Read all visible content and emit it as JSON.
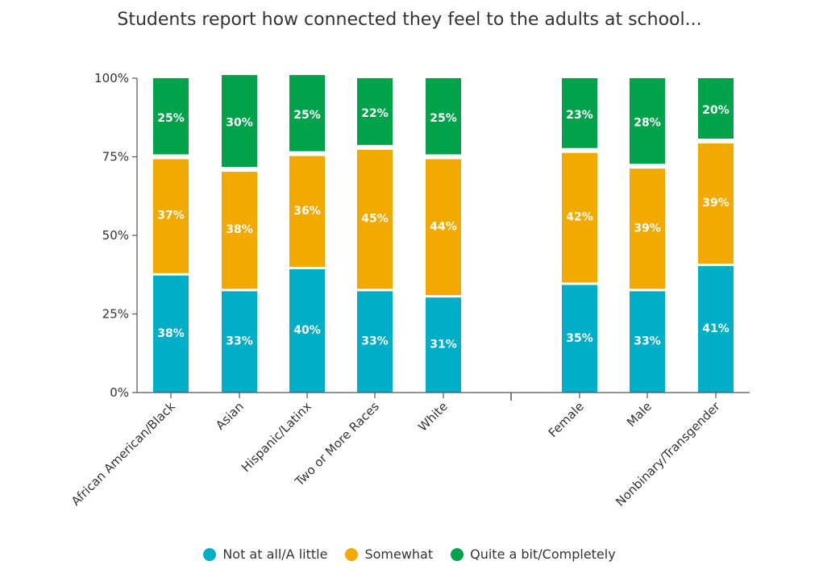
{
  "chart_data": {
    "type": "bar",
    "stacked": true,
    "percent": true,
    "title": "Students report how connected they feel to the adults at school...",
    "xlabel": "",
    "ylabel": "",
    "ylim": [
      0,
      100
    ],
    "yticks": [
      "0%",
      "25%",
      "50%",
      "75%",
      "100%"
    ],
    "categories": [
      "African American/Black",
      "Asian",
      "Hispanic/Latinx",
      "Two or More Races",
      "White",
      "Female",
      "Male",
      "Nonbinary/Transgender"
    ],
    "groups": [
      [
        "African American/Black",
        "Asian",
        "Hispanic/Latinx",
        "Two or More Races",
        "White"
      ],
      [
        "Female",
        "Male",
        "Nonbinary/Transgender"
      ]
    ],
    "series": [
      {
        "name": "Not at all/A little",
        "color": "#00AEC7",
        "values": [
          38,
          33,
          40,
          33,
          31,
          35,
          33,
          41
        ],
        "labels": [
          "38%",
          "33%",
          "40%",
          "33%",
          "31%",
          "35%",
          "33%",
          "41%"
        ]
      },
      {
        "name": "Somewhat",
        "color": "#F2A900",
        "values": [
          37,
          38,
          36,
          45,
          44,
          42,
          39,
          39
        ],
        "labels": [
          "37%",
          "38%",
          "36%",
          "45%",
          "44%",
          "42%",
          "39%",
          "39%"
        ]
      },
      {
        "name": "Quite a bit/Completely",
        "color": "#00A34A",
        "values": [
          25,
          30,
          25,
          22,
          25,
          23,
          28,
          20
        ],
        "labels": [
          "25%",
          "30%",
          "25%",
          "22%",
          "25%",
          "23%",
          "28%",
          "20%"
        ]
      }
    ],
    "legend_position": "bottom-center",
    "grid": false
  }
}
